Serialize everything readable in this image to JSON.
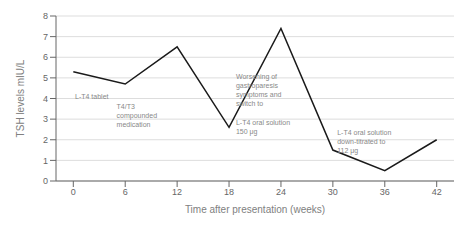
{
  "chart_data": {
    "type": "line",
    "x": [
      0,
      6,
      12,
      18,
      24,
      30,
      36,
      42
    ],
    "values": [
      5.3,
      4.7,
      6.5,
      2.6,
      7.4,
      1.5,
      0.5,
      2.0
    ],
    "xlabel": "Time after presentation (weeks)",
    "ylabel": "TSH levels mIU/L",
    "xlim": [
      -2,
      44
    ],
    "ylim": [
      0,
      8
    ],
    "xticks": [
      0,
      6,
      12,
      18,
      24,
      30,
      36,
      42
    ],
    "yticks": [
      0,
      1,
      2,
      3,
      4,
      5,
      6,
      7,
      8
    ],
    "color": "#1a1a1a",
    "grid": "y",
    "annotations": [
      {
        "text": "L-T4 tablet",
        "x": 0.2,
        "y": 4.3
      },
      {
        "text": "T4/T3\ncompounded\nmedication",
        "x": 5.0,
        "y": 3.85
      },
      {
        "text": "Worsening of\ngastroparesis\nsymptoms and\nswitch to",
        "x": 18.8,
        "y": 5.3
      },
      {
        "text": "L-T4 oral solution\n150 μg",
        "x": 18.8,
        "y": 3.05
      },
      {
        "text": "L-T4 oral solution\ndown-titrated to\n112 μg",
        "x": 30.5,
        "y": 2.55
      }
    ]
  }
}
